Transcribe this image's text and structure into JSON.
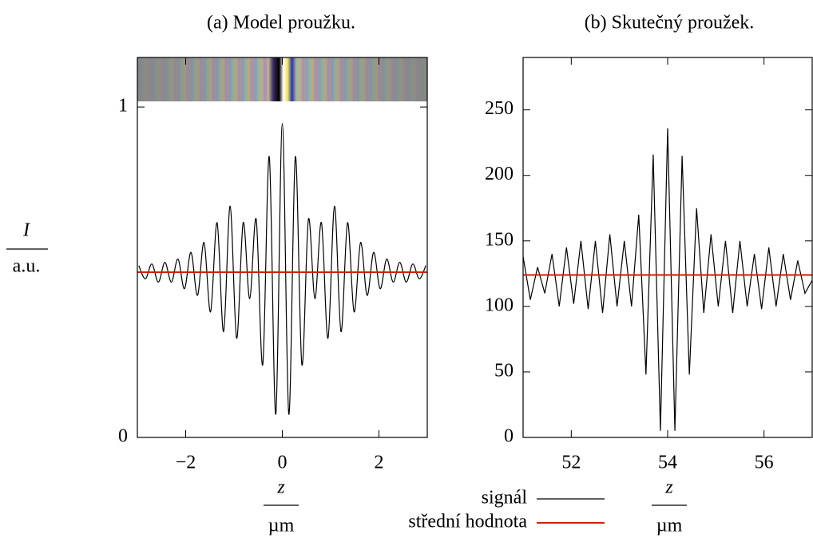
{
  "chart_data": [
    {
      "type": "line",
      "title": "(a) Model proužku.",
      "ylabel": {
        "symbol": "I",
        "unit": "a.u."
      },
      "xlabel": {
        "symbol": "z",
        "unit": "µm"
      },
      "xlim": [
        -3,
        3
      ],
      "ylim": [
        0,
        1.15
      ],
      "xticks": [
        {
          "value": -2,
          "label": "−2"
        },
        0,
        2
      ],
      "yticks": [
        0,
        1
      ],
      "smooth": true,
      "series": [
        {
          "color": "#000000",
          "x": [
            -2.97,
            -2.835,
            -2.7,
            -2.565,
            -2.43,
            -2.295,
            -2.16,
            -2.025,
            -1.89,
            -1.755,
            -1.62,
            -1.485,
            -1.35,
            -1.215,
            -1.08,
            -0.945,
            -0.81,
            -0.675,
            -0.54,
            -0.405,
            -0.27,
            -0.135,
            0,
            0.135,
            0.27,
            0.405,
            0.54,
            0.675,
            0.81,
            0.945,
            1.08,
            1.215,
            1.35,
            1.485,
            1.62,
            1.755,
            1.89,
            2.025,
            2.16,
            2.295,
            2.43,
            2.565,
            2.7,
            2.835,
            2.97
          ],
          "values": [
            0.52,
            0.48,
            0.525,
            0.47,
            0.53,
            0.47,
            0.54,
            0.45,
            0.56,
            0.43,
            0.59,
            0.38,
            0.65,
            0.32,
            0.7,
            0.3,
            0.65,
            0.42,
            0.66,
            0.22,
            0.85,
            0.07,
            0.95,
            0.07,
            0.85,
            0.22,
            0.66,
            0.42,
            0.65,
            0.3,
            0.7,
            0.32,
            0.65,
            0.38,
            0.59,
            0.43,
            0.56,
            0.45,
            0.54,
            0.47,
            0.53,
            0.47,
            0.525,
            0.48,
            0.52
          ]
        },
        {
          "color": "#cc2200",
          "x": [
            -3,
            3
          ],
          "values": [
            0.5,
            0.5
          ]
        }
      ]
    },
    {
      "type": "line",
      "title": "(b) Skutečný proužek.",
      "xlabel": {
        "symbol": "z",
        "unit": "µm"
      },
      "xlim": [
        51,
        57
      ],
      "ylim": [
        0,
        290
      ],
      "xticks": [
        52,
        54,
        56
      ],
      "yticks": [
        0,
        50,
        100,
        150,
        200,
        250
      ],
      "smooth": false,
      "series": [
        {
          "name": "signál",
          "color": "#000000",
          "x": [
            51,
            51.15,
            51.3,
            51.45,
            51.6,
            51.75,
            51.9,
            52.05,
            52.2,
            52.35,
            52.5,
            52.65,
            52.8,
            52.95,
            53.1,
            53.25,
            53.4,
            53.55,
            53.7,
            53.85,
            54,
            54.15,
            54.3,
            54.45,
            54.6,
            54.75,
            54.9,
            55.05,
            55.2,
            55.35,
            55.5,
            55.65,
            55.8,
            55.95,
            56.1,
            56.25,
            56.4,
            56.55,
            56.7,
            56.85,
            57
          ],
          "values": [
            138,
            105,
            130,
            110,
            140,
            100,
            145,
            102,
            150,
            98,
            150,
            95,
            155,
            100,
            150,
            100,
            170,
            48,
            216,
            5,
            236,
            5,
            215,
            48,
            175,
            95,
            155,
            100,
            150,
            95,
            150,
            100,
            140,
            98,
            145,
            100,
            140,
            105,
            135,
            110,
            120
          ]
        },
        {
          "name": "střední hodnota",
          "color": "#cc2200",
          "x": [
            51,
            57
          ],
          "values": [
            124,
            124
          ]
        }
      ]
    }
  ]
}
